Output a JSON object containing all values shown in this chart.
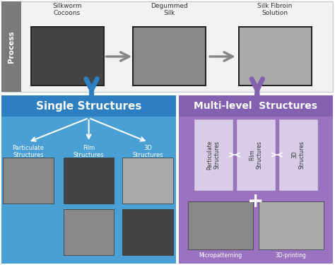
{
  "process_label": "Process",
  "process_steps": [
    "Silkworm\nCocoons",
    "Degummed\nSilk",
    "Silk Fibroin\nSolution"
  ],
  "single_title": "Single Structures",
  "multi_title": "Multi-level  Structures",
  "single_sub": [
    "Particulate\nStructures",
    "Film\nStructures",
    "3D\nStructures"
  ],
  "multi_sub": [
    "Particulate\nStructures",
    "Film\nStructures",
    "3D\nStructures"
  ],
  "multi_bottom": [
    "Micropatterning",
    "3D-printing"
  ],
  "bg_color": "#ffffff",
  "process_bg": "#f2f2f2",
  "process_sidebar": "#7a7a7a",
  "process_border": "#cccccc",
  "single_bg": "#4a9fd4",
  "single_title_bg": "#2d7fc1",
  "multi_bg": "#9b72c0",
  "multi_title_bg": "#8460b0",
  "arrow_blue": "#2d7fc1",
  "arrow_purple": "#8460b0",
  "arrow_red": "#e83030",
  "white": "#ffffff",
  "gray_arrow": "#888888",
  "text_white": "#ffffff",
  "text_dark": "#333333",
  "photo_dark": "#444444",
  "photo_mid": "#888888",
  "photo_light": "#aaaaaa",
  "panel_bg": "#d8cce8"
}
